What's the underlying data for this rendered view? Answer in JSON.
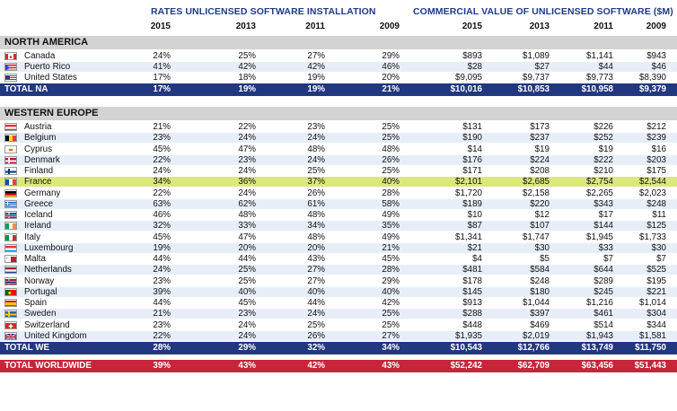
{
  "headers": {
    "rates": "RATES UNLICENSED SOFTWARE INSTALLATION",
    "value": "COMMERCIAL VALUE OF UNLICENSED SOFTWARE ($M)",
    "years": [
      "2015",
      "2013",
      "2011",
      "2009",
      "2015",
      "2013",
      "2011",
      "2009"
    ]
  },
  "regions": {
    "na": "NORTH AMERICA",
    "we": "WESTERN EUROPE"
  },
  "na_rows": [
    {
      "name": "Canada",
      "flag": "canada",
      "vals": [
        "24%",
        "25%",
        "27%",
        "29%",
        "$893",
        "$1,089",
        "$1,141",
        "$943"
      ]
    },
    {
      "name": "Puerto Rico",
      "flag": "puerto-rico",
      "vals": [
        "41%",
        "42%",
        "42%",
        "46%",
        "$28",
        "$27",
        "$44",
        "$46"
      ]
    },
    {
      "name": "United States",
      "flag": "usa",
      "vals": [
        "17%",
        "18%",
        "19%",
        "20%",
        "$9,095",
        "$9,737",
        "$9,773",
        "$8,390"
      ]
    }
  ],
  "total_na": {
    "label": "TOTAL NA",
    "vals": [
      "17%",
      "19%",
      "19%",
      "21%",
      "$10,016",
      "$10,853",
      "$10,958",
      "$9,379"
    ]
  },
  "we_rows": [
    {
      "name": "Austria",
      "flag": "austria",
      "vals": [
        "21%",
        "22%",
        "23%",
        "25%",
        "$131",
        "$173",
        "$226",
        "$212"
      ]
    },
    {
      "name": "Belgium",
      "flag": "belgium",
      "vals": [
        "23%",
        "24%",
        "24%",
        "25%",
        "$190",
        "$237",
        "$252",
        "$239"
      ]
    },
    {
      "name": "Cyprus",
      "flag": "cyprus",
      "vals": [
        "45%",
        "47%",
        "48%",
        "48%",
        "$14",
        "$19",
        "$19",
        "$16"
      ]
    },
    {
      "name": "Denmark",
      "flag": "denmark",
      "vals": [
        "22%",
        "23%",
        "24%",
        "26%",
        "$176",
        "$224",
        "$222",
        "$203"
      ]
    },
    {
      "name": "Finland",
      "flag": "finland",
      "vals": [
        "24%",
        "24%",
        "25%",
        "25%",
        "$171",
        "$208",
        "$210",
        "$175"
      ]
    },
    {
      "name": "France",
      "flag": "france",
      "vals": [
        "34%",
        "36%",
        "37%",
        "40%",
        "$2,101",
        "$2,685",
        "$2,754",
        "$2,544"
      ],
      "highlight": true
    },
    {
      "name": "Germany",
      "flag": "germany",
      "vals": [
        "22%",
        "24%",
        "26%",
        "28%",
        "$1,720",
        "$2,158",
        "$2,265",
        "$2,023"
      ]
    },
    {
      "name": "Greece",
      "flag": "greece",
      "vals": [
        "63%",
        "62%",
        "61%",
        "58%",
        "$189",
        "$220",
        "$343",
        "$248"
      ]
    },
    {
      "name": "Iceland",
      "flag": "iceland",
      "vals": [
        "46%",
        "48%",
        "48%",
        "49%",
        "$10",
        "$12",
        "$17",
        "$11"
      ]
    },
    {
      "name": "Ireland",
      "flag": "ireland",
      "vals": [
        "32%",
        "33%",
        "34%",
        "35%",
        "$87",
        "$107",
        "$144",
        "$125"
      ]
    },
    {
      "name": "Italy",
      "flag": "italy",
      "vals": [
        "45%",
        "47%",
        "48%",
        "49%",
        "$1,341",
        "$1,747",
        "$1,945",
        "$1,733"
      ]
    },
    {
      "name": "Luxembourg",
      "flag": "luxembourg",
      "vals": [
        "19%",
        "20%",
        "20%",
        "21%",
        "$21",
        "$30",
        "$33",
        "$30"
      ]
    },
    {
      "name": "Malta",
      "flag": "malta",
      "vals": [
        "44%",
        "44%",
        "43%",
        "45%",
        "$4",
        "$5",
        "$7",
        "$7"
      ]
    },
    {
      "name": "Netherlands",
      "flag": "netherlands",
      "vals": [
        "24%",
        "25%",
        "27%",
        "28%",
        "$481",
        "$584",
        "$644",
        "$525"
      ]
    },
    {
      "name": "Norway",
      "flag": "norway",
      "vals": [
        "23%",
        "25%",
        "27%",
        "29%",
        "$178",
        "$248",
        "$289",
        "$195"
      ]
    },
    {
      "name": "Portugal",
      "flag": "portugal",
      "vals": [
        "39%",
        "40%",
        "40%",
        "40%",
        "$145",
        "$180",
        "$245",
        "$221"
      ]
    },
    {
      "name": "Spain",
      "flag": "spain",
      "vals": [
        "44%",
        "45%",
        "44%",
        "42%",
        "$913",
        "$1,044",
        "$1,216",
        "$1,014"
      ]
    },
    {
      "name": "Sweden",
      "flag": "sweden",
      "vals": [
        "21%",
        "23%",
        "24%",
        "25%",
        "$288",
        "$397",
        "$461",
        "$304"
      ]
    },
    {
      "name": "Switzerland",
      "flag": "switzerland",
      "vals": [
        "23%",
        "24%",
        "25%",
        "25%",
        "$448",
        "$469",
        "$514",
        "$344"
      ]
    },
    {
      "name": "United Kingdom",
      "flag": "uk",
      "vals": [
        "22%",
        "24%",
        "26%",
        "27%",
        "$1,935",
        "$2,019",
        "$1,943",
        "$1,581"
      ]
    }
  ],
  "total_we": {
    "label": "TOTAL WE",
    "vals": [
      "28%",
      "29%",
      "32%",
      "34%",
      "$10,543",
      "$12,766",
      "$13,749",
      "$11,750"
    ]
  },
  "total_world": {
    "label": "TOTAL WORLDWIDE",
    "vals": [
      "39%",
      "43%",
      "42%",
      "43%",
      "$52,242",
      "$62,709",
      "$63,456",
      "$51,443"
    ]
  },
  "colors": {
    "navy": "#21377f",
    "red": "#c8253a",
    "highlight": "#dbe87a",
    "stripe": "#e7eef8",
    "region": "#d3d3d3",
    "header_text": "#1f3a86"
  }
}
